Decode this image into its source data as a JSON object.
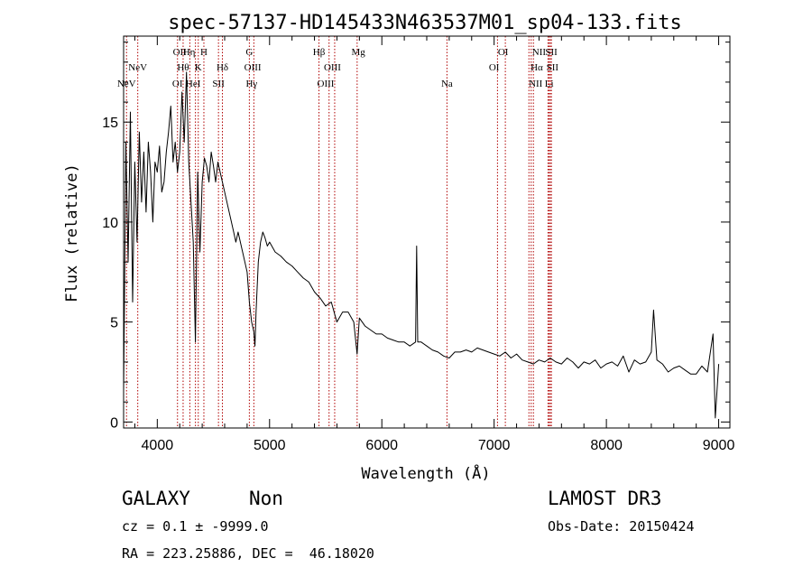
{
  "chart_data": {
    "type": "line",
    "title": "spec-57137-HD145433N463537M01_sp04-133.fits",
    "xlabel": "Wavelength (Å)",
    "ylabel": "Flux (relative)",
    "xlim": [
      3700,
      9100
    ],
    "ylim": [
      -0.3,
      19.3
    ],
    "x_ticks": [
      4000,
      5000,
      6000,
      7000,
      8000,
      9000
    ],
    "y_ticks": [
      0,
      5,
      10,
      15
    ],
    "grid": false,
    "series": [
      {
        "x": [
          3700,
          3720,
          3740,
          3760,
          3780,
          3800,
          3820,
          3840,
          3860,
          3880,
          3900,
          3920,
          3940,
          3960,
          3980,
          4000,
          4020,
          4040,
          4060,
          4080,
          4100,
          4120,
          4140,
          4160,
          4180,
          4200,
          4220,
          4240,
          4260,
          4280,
          4300,
          4320,
          4340,
          4360,
          4380,
          4400,
          4420,
          4440,
          4460,
          4480,
          4500,
          4520,
          4540,
          4560,
          4580,
          4600,
          4620,
          4640,
          4660,
          4680,
          4700,
          4720,
          4740,
          4760,
          4780,
          4800,
          4820,
          4840,
          4860,
          4870,
          4880,
          4900,
          4920,
          4940,
          4960,
          4980,
          5000,
          5050,
          5100,
          5150,
          5200,
          5250,
          5300,
          5350,
          5400,
          5450,
          5500,
          5550,
          5600,
          5650,
          5700,
          5750,
          5780,
          5800,
          5850,
          5900,
          5950,
          6000,
          6050,
          6100,
          6150,
          6200,
          6250,
          6300,
          6310,
          6320,
          6350,
          6400,
          6450,
          6500,
          6550,
          6600,
          6650,
          6700,
          6750,
          6800,
          6850,
          6900,
          6950,
          7000,
          7050,
          7100,
          7150,
          7200,
          7250,
          7300,
          7350,
          7400,
          7450,
          7500,
          7550,
          7600,
          7650,
          7700,
          7750,
          7800,
          7850,
          7900,
          7950,
          8000,
          8050,
          8100,
          8150,
          8200,
          8250,
          8300,
          8350,
          8400,
          8420,
          8450,
          8500,
          8550,
          8600,
          8650,
          8700,
          8750,
          8800,
          8850,
          8900,
          8950,
          8970,
          9000
        ],
        "values": [
          1.5,
          14.0,
          8.0,
          15.5,
          6.0,
          13.0,
          9.0,
          14.5,
          11.0,
          13.5,
          10.5,
          14.0,
          12.5,
          10.0,
          13.0,
          12.5,
          13.8,
          11.5,
          12.0,
          13.5,
          14.5,
          15.8,
          13.0,
          14.0,
          12.5,
          13.5,
          16.5,
          14.0,
          17.5,
          13.0,
          11.0,
          9.0,
          4.0,
          12.5,
          8.5,
          12.0,
          13.2,
          12.8,
          12.0,
          13.5,
          12.8,
          12.0,
          13.0,
          12.5,
          12.0,
          11.5,
          11.0,
          10.5,
          10.0,
          9.5,
          9.0,
          9.5,
          9.0,
          8.5,
          8.0,
          7.5,
          6.0,
          5.0,
          4.5,
          3.8,
          5.5,
          8.0,
          9.0,
          9.5,
          9.2,
          8.8,
          9.0,
          8.5,
          8.3,
          8.0,
          7.8,
          7.5,
          7.2,
          7.0,
          6.5,
          6.2,
          5.8,
          6.0,
          5.0,
          5.5,
          5.5,
          5.0,
          3.4,
          5.2,
          4.8,
          4.6,
          4.4,
          4.4,
          4.2,
          4.1,
          4.0,
          4.0,
          3.8,
          4.0,
          8.8,
          4.0,
          4.0,
          3.8,
          3.6,
          3.5,
          3.3,
          3.2,
          3.5,
          3.5,
          3.6,
          3.5,
          3.7,
          3.6,
          3.5,
          3.4,
          3.3,
          3.5,
          3.2,
          3.4,
          3.1,
          3.0,
          2.9,
          3.1,
          3.0,
          3.2,
          3.0,
          2.9,
          3.2,
          3.0,
          2.7,
          3.0,
          2.9,
          3.1,
          2.7,
          2.9,
          3.0,
          2.8,
          3.3,
          2.5,
          3.1,
          2.9,
          3.0,
          3.5,
          5.6,
          3.1,
          2.9,
          2.5,
          2.7,
          2.8,
          2.6,
          2.4,
          2.4,
          2.8,
          2.5,
          4.4,
          0.2,
          2.9
        ]
      }
    ],
    "spectral_lines": [
      {
        "label": "NeV",
        "x": 3726,
        "row": 2
      },
      {
        "label": "NeV",
        "x": 3826,
        "row": 1
      },
      {
        "label": "OII",
        "x": 4200,
        "row": 0
      },
      {
        "label": "OI",
        "x": 4180,
        "row": 2
      },
      {
        "label": "Hθ",
        "x": 4230,
        "row": 1
      },
      {
        "label": "Hη",
        "x": 4283,
        "row": 0
      },
      {
        "label": "HeI",
        "x": 4320,
        "row": 2
      },
      {
        "label": "K",
        "x": 4365,
        "row": 1
      },
      {
        "label": "H",
        "x": 4415,
        "row": 0
      },
      {
        "label": "SII",
        "x": 4545,
        "row": 2
      },
      {
        "label": "Hδ",
        "x": 4580,
        "row": 1
      },
      {
        "label": "G",
        "x": 4820,
        "row": 0
      },
      {
        "label": "OIII",
        "x": 4850,
        "row": 1
      },
      {
        "label": "Hγ",
        "x": 4840,
        "row": 2
      },
      {
        "label": "Hβ",
        "x": 5440,
        "row": 0
      },
      {
        "label": "OIII",
        "x": 5560,
        "row": 1
      },
      {
        "label": "OIII",
        "x": 5500,
        "row": 2
      },
      {
        "label": "Mg",
        "x": 5790,
        "row": 0
      },
      {
        "label": "Na",
        "x": 6580,
        "row": 2
      },
      {
        "label": "OI",
        "x": 7080,
        "row": 0
      },
      {
        "label": "OI",
        "x": 7000,
        "row": 1
      },
      {
        "label": "NII",
        "x": 7400,
        "row": 0
      },
      {
        "label": "SII",
        "x": 7510,
        "row": 0
      },
      {
        "label": "Hα",
        "x": 7380,
        "row": 1
      },
      {
        "label": "SII",
        "x": 7520,
        "row": 1
      },
      {
        "label": "NII",
        "x": 7370,
        "row": 2
      },
      {
        "label": "Li",
        "x": 7490,
        "row": 2
      }
    ],
    "line_markers": [
      3726,
      3826,
      4180,
      4230,
      4290,
      4340,
      4365,
      4415,
      4545,
      4580,
      4820,
      4860,
      5440,
      5530,
      5580,
      5780,
      6580,
      7030,
      7100,
      7310,
      7330,
      7350,
      7480,
      7490,
      7500,
      7510
    ]
  },
  "info": {
    "class_label": "GALAXY",
    "subclass_label": "Non",
    "survey": "LAMOST DR3",
    "cz_text": "cz = 0.1 ± -9999.0",
    "obs_date": "Obs-Date: 20150424",
    "radec_text": "RA = 223.25886, DEC =  46.18020"
  },
  "colors": {
    "line_marker": "#b00000",
    "spectrum": "#000000"
  }
}
